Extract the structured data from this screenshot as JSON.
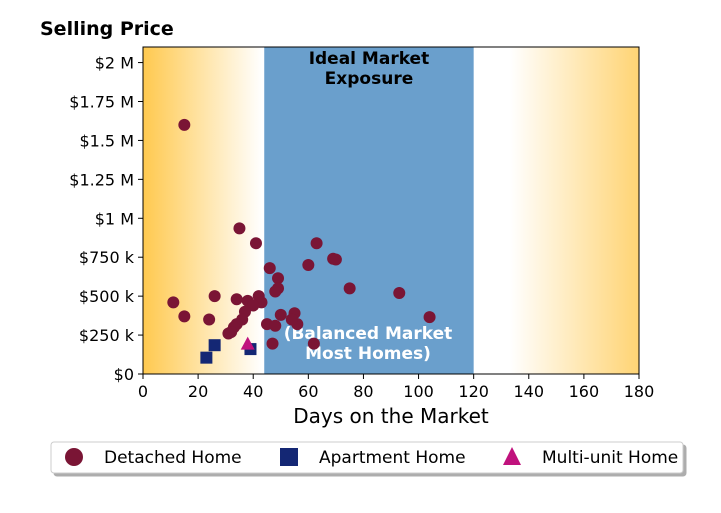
{
  "chart_data": {
    "type": "scatter",
    "title": "Selling Price",
    "xlabel": "Days on the Market",
    "ylabel": "",
    "xlim": [
      0,
      180
    ],
    "ylim": [
      0,
      2100000
    ],
    "x_ticks": [
      0,
      20,
      40,
      60,
      80,
      100,
      120,
      140,
      160,
      180
    ],
    "x_tick_labels": [
      "0",
      "20",
      "40",
      "60",
      "80",
      "100",
      "120",
      "140",
      "160",
      "180"
    ],
    "y_ticks": [
      0,
      250000,
      500000,
      750000,
      1000000,
      1250000,
      1500000,
      1750000,
      2000000
    ],
    "y_tick_labels": [
      "$0",
      "$250 k",
      "$500 k",
      "$750 k",
      "$1 M",
      "$1.25 M",
      "$1.5 M",
      "$1.75 M",
      "$2 M"
    ],
    "grid": false,
    "legend_position": "bottom",
    "zones": [
      {
        "x_start": 44,
        "x_end": 120,
        "color": "#6a9fcc",
        "label_top": [
          "Ideal Market",
          "Exposure"
        ],
        "label_bottom": [
          "(Balanced Market",
          "Most Homes)"
        ]
      }
    ],
    "background_gradient": {
      "edge_color": "#ffcc55",
      "center_color": "#ffffff"
    },
    "series": [
      {
        "name": "Detached Home",
        "marker": "circle",
        "color": "#7a1535",
        "points": [
          [
            15,
            1600000
          ],
          [
            35,
            935000
          ],
          [
            41,
            840000
          ],
          [
            63,
            840000
          ],
          [
            69,
            740000
          ],
          [
            70,
            735000
          ],
          [
            60,
            700000
          ],
          [
            46,
            680000
          ],
          [
            49,
            615000
          ],
          [
            49,
            550000
          ],
          [
            48,
            530000
          ],
          [
            75,
            550000
          ],
          [
            93,
            520000
          ],
          [
            104,
            365000
          ],
          [
            11,
            460000
          ],
          [
            26,
            500000
          ],
          [
            34,
            480000
          ],
          [
            38,
            470000
          ],
          [
            42,
            500000
          ],
          [
            43,
            460000
          ],
          [
            40,
            440000
          ],
          [
            37,
            400000
          ],
          [
            36,
            350000
          ],
          [
            34,
            320000
          ],
          [
            33,
            300000
          ],
          [
            32,
            270000
          ],
          [
            31,
            260000
          ],
          [
            24,
            350000
          ],
          [
            15,
            370000
          ],
          [
            50,
            380000
          ],
          [
            55,
            390000
          ],
          [
            45,
            320000
          ],
          [
            48,
            310000
          ],
          [
            56,
            320000
          ],
          [
            54,
            350000
          ],
          [
            47,
            195000
          ],
          [
            62,
            195000
          ]
        ]
      },
      {
        "name": "Apartment Home",
        "marker": "square",
        "color": "#142774",
        "points": [
          [
            23,
            105000
          ],
          [
            26,
            185000
          ],
          [
            39,
            160000
          ]
        ]
      },
      {
        "name": "Multi-unit Home",
        "marker": "triangle",
        "color": "#c0127d",
        "points": [
          [
            38,
            195000
          ]
        ]
      }
    ]
  }
}
